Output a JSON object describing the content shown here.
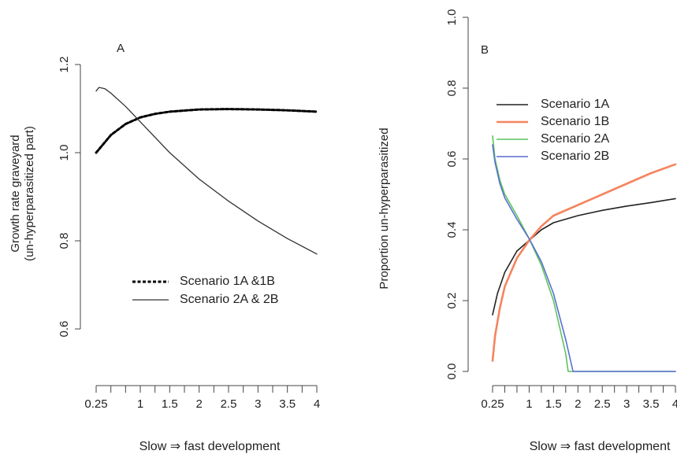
{
  "chart_data": [
    {
      "type": "line",
      "panel_label": "A",
      "ylabel_line1": "Growth rate graveyard",
      "ylabel_line2": "(un-hyperparasitized part)",
      "xlabel": "Slow ⇒ fast development",
      "xlim": [
        0.25,
        4
      ],
      "ylim": [
        0.6,
        1.2
      ],
      "y_ticks": [
        0.6,
        0.8,
        1.0,
        1.2
      ],
      "y_tick_labels": [
        "0.6",
        "0.8",
        "1.0",
        "1.2"
      ],
      "x_ticks": [
        0.25,
        1,
        1.5,
        2,
        2.5,
        3,
        3.5,
        4
      ],
      "x_tick_labels": [
        "0.25",
        "1",
        "1.5",
        "2",
        "2.5",
        "3",
        "3.5",
        "4"
      ],
      "legend_position": "bottom-right",
      "series": [
        {
          "name": "Scenario 1A &1B",
          "color": "#000000",
          "dash": "dashed",
          "x": [
            0.25,
            0.5,
            0.75,
            1.0,
            1.25,
            1.5,
            2.0,
            2.5,
            3.0,
            3.5,
            4.0
          ],
          "y": [
            1.0,
            1.04,
            1.065,
            1.08,
            1.088,
            1.093,
            1.098,
            1.099,
            1.098,
            1.096,
            1.093
          ]
        },
        {
          "name": "Scenario 2A & 2B",
          "color": "#333333",
          "dash": "solid",
          "x": [
            0.25,
            0.3,
            0.4,
            0.5,
            0.75,
            1.0,
            1.5,
            2.0,
            2.5,
            3.0,
            3.5,
            4.0
          ],
          "y": [
            1.14,
            1.148,
            1.145,
            1.135,
            1.105,
            1.07,
            1.0,
            0.94,
            0.89,
            0.845,
            0.805,
            0.77
          ]
        }
      ]
    },
    {
      "type": "line",
      "panel_label": "B",
      "ylabel": "Proportion un-hyperparasitized",
      "xlabel": "Slow ⇒ fast development",
      "xlim": [
        0.25,
        4
      ],
      "ylim": [
        0.0,
        1.0
      ],
      "y_ticks": [
        0.0,
        0.2,
        0.4,
        0.6,
        0.8,
        1.0
      ],
      "y_tick_labels": [
        "0.0",
        "0.2",
        "0.4",
        "0.6",
        "0.8",
        "1.0"
      ],
      "x_ticks": [
        0.25,
        1,
        1.5,
        2,
        2.5,
        3,
        3.5,
        4
      ],
      "x_tick_labels": [
        "0.25",
        "1",
        "1.5",
        "2",
        "2.5",
        "3",
        "3.5",
        "4"
      ],
      "legend_position": "top-right",
      "series": [
        {
          "name": "Scenario 1A",
          "color": "#222222",
          "x": [
            0.25,
            0.35,
            0.5,
            0.75,
            1.0,
            1.25,
            1.5,
            2.0,
            2.5,
            3.0,
            3.5,
            4.0
          ],
          "y": [
            0.16,
            0.22,
            0.28,
            0.34,
            0.37,
            0.4,
            0.42,
            0.44,
            0.455,
            0.467,
            0.477,
            0.488
          ]
        },
        {
          "name": "Scenario 1B",
          "color": "#f5845f",
          "x": [
            0.25,
            0.3,
            0.4,
            0.5,
            0.75,
            1.0,
            1.25,
            1.5,
            2.0,
            2.5,
            3.0,
            3.5,
            4.0
          ],
          "y": [
            0.03,
            0.1,
            0.18,
            0.24,
            0.32,
            0.37,
            0.41,
            0.44,
            0.47,
            0.5,
            0.53,
            0.56,
            0.585
          ]
        },
        {
          "name": "Scenario 2A",
          "color": "#5cc45c",
          "x": [
            0.25,
            0.3,
            0.4,
            0.5,
            0.75,
            1.0,
            1.25,
            1.5,
            1.75,
            1.8,
            4.0
          ],
          "y": [
            0.665,
            0.6,
            0.54,
            0.5,
            0.44,
            0.375,
            0.3,
            0.2,
            0.05,
            0.0,
            0.0
          ]
        },
        {
          "name": "Scenario 2B",
          "color": "#5a6fd1",
          "x": [
            0.25,
            0.3,
            0.4,
            0.5,
            0.75,
            1.0,
            1.25,
            1.5,
            1.75,
            1.9,
            4.0
          ],
          "y": [
            0.64,
            0.59,
            0.53,
            0.49,
            0.43,
            0.375,
            0.31,
            0.22,
            0.09,
            0.0,
            0.0
          ]
        }
      ]
    }
  ]
}
